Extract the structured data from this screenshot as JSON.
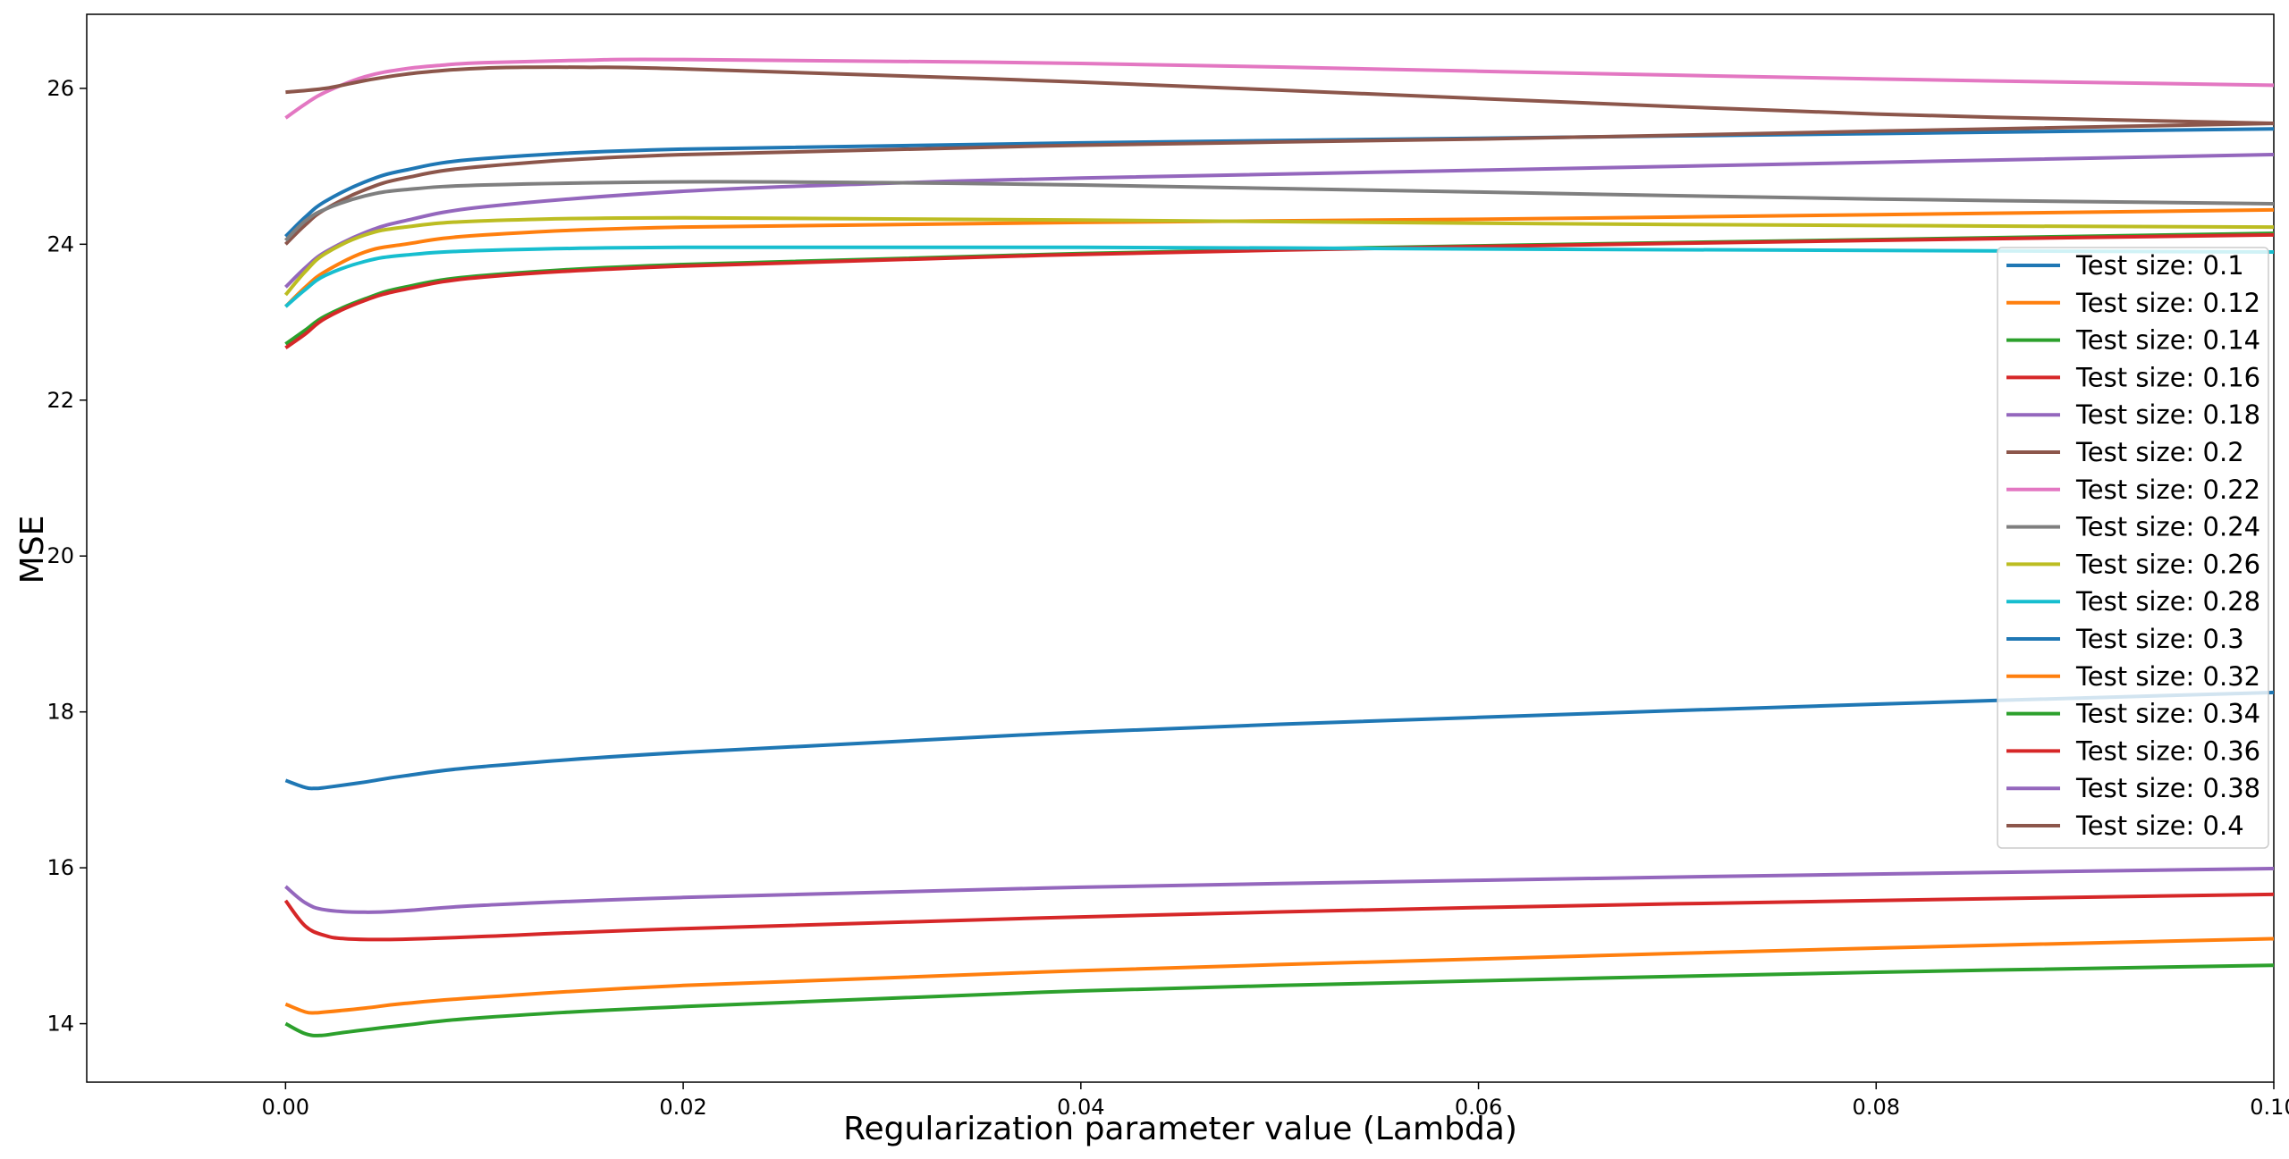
{
  "chart_data": {
    "type": "line",
    "title": "",
    "xlabel": "Regularization parameter value (Lambda)",
    "ylabel": "MSE",
    "xlim": [
      -0.01,
      0.1
    ],
    "ylim": [
      13.25,
      26.95
    ],
    "xticks": [
      0.0,
      0.02,
      0.04,
      0.06,
      0.08,
      0.1
    ],
    "xtick_labels": [
      "0.00",
      "0.02",
      "0.04",
      "0.06",
      "0.08",
      "0.10"
    ],
    "yticks": [
      14,
      16,
      18,
      20,
      22,
      24,
      26
    ],
    "ytick_labels": [
      "14",
      "16",
      "18",
      "20",
      "22",
      "24",
      "26"
    ],
    "grid": false,
    "legend_position": "right",
    "series": [
      {
        "name": "Test size: 0.1",
        "color": "#1f77b4",
        "x": [
          0.0,
          0.001,
          0.002,
          0.004,
          0.006,
          0.01,
          0.02,
          0.04,
          0.06,
          0.08,
          0.1
        ],
        "y": [
          24.1,
          24.35,
          24.55,
          24.8,
          24.95,
          25.1,
          25.22,
          25.3,
          25.36,
          25.42,
          25.48
        ]
      },
      {
        "name": "Test size: 0.12",
        "color": "#ff7f0e",
        "x": [
          0.0,
          0.001,
          0.002,
          0.004,
          0.006,
          0.01,
          0.02,
          0.04,
          0.06,
          0.08,
          0.1
        ],
        "y": [
          23.2,
          23.45,
          23.65,
          23.9,
          24.0,
          24.12,
          24.22,
          24.28,
          24.32,
          24.38,
          24.44
        ]
      },
      {
        "name": "Test size: 0.14",
        "color": "#2ca02c",
        "x": [
          0.0,
          0.001,
          0.002,
          0.004,
          0.006,
          0.01,
          0.02,
          0.04,
          0.06,
          0.08,
          0.1
        ],
        "y": [
          22.72,
          22.9,
          23.08,
          23.3,
          23.45,
          23.6,
          23.74,
          23.88,
          23.98,
          24.06,
          24.14
        ]
      },
      {
        "name": "Test size: 0.16",
        "color": "#d62728",
        "x": [
          0.0,
          0.001,
          0.002,
          0.004,
          0.006,
          0.01,
          0.02,
          0.04,
          0.06,
          0.08,
          0.1
        ],
        "y": [
          22.67,
          22.85,
          23.05,
          23.28,
          23.42,
          23.58,
          23.72,
          23.87,
          23.97,
          24.05,
          24.12
        ]
      },
      {
        "name": "Test size: 0.18",
        "color": "#9467bd",
        "x": [
          0.0,
          0.001,
          0.002,
          0.004,
          0.006,
          0.01,
          0.02,
          0.03,
          0.04,
          0.06,
          0.08,
          0.1
        ],
        "y": [
          23.45,
          23.7,
          23.9,
          24.15,
          24.3,
          24.48,
          24.68,
          24.78,
          24.85,
          24.95,
          25.05,
          25.15
        ]
      },
      {
        "name": "Test size: 0.2",
        "color": "#8c564b",
        "x": [
          0.0,
          0.001,
          0.002,
          0.004,
          0.006,
          0.01,
          0.02,
          0.04,
          0.06,
          0.08,
          0.1
        ],
        "y": [
          24.0,
          24.25,
          24.45,
          24.7,
          24.85,
          25.0,
          25.15,
          25.27,
          25.35,
          25.45,
          25.55
        ]
      },
      {
        "name": "Test size: 0.22",
        "color": "#e377c2",
        "x": [
          0.0,
          0.001,
          0.002,
          0.004,
          0.006,
          0.008,
          0.01,
          0.015,
          0.02,
          0.04,
          0.06,
          0.08,
          0.1
        ],
        "y": [
          25.62,
          25.8,
          25.95,
          26.15,
          26.25,
          26.3,
          26.33,
          26.36,
          26.37,
          26.32,
          26.22,
          26.12,
          26.04
        ]
      },
      {
        "name": "Test size: 0.24",
        "color": "#7f7f7f",
        "x": [
          0.0,
          0.001,
          0.002,
          0.004,
          0.006,
          0.01,
          0.02,
          0.03,
          0.04,
          0.06,
          0.08,
          0.1
        ],
        "y": [
          24.05,
          24.3,
          24.45,
          24.62,
          24.7,
          24.76,
          24.8,
          24.79,
          24.76,
          24.67,
          24.58,
          24.52
        ]
      },
      {
        "name": "Test size: 0.26",
        "color": "#bcbd22",
        "x": [
          0.0,
          0.001,
          0.002,
          0.004,
          0.006,
          0.01,
          0.02,
          0.04,
          0.06,
          0.08,
          0.1
        ],
        "y": [
          23.35,
          23.65,
          23.88,
          24.12,
          24.22,
          24.3,
          24.34,
          24.31,
          24.27,
          24.24,
          24.22
        ]
      },
      {
        "name": "Test size: 0.28",
        "color": "#17becf",
        "x": [
          0.0,
          0.001,
          0.002,
          0.004,
          0.006,
          0.01,
          0.02,
          0.04,
          0.06,
          0.08,
          0.1
        ],
        "y": [
          23.2,
          23.42,
          23.6,
          23.78,
          23.86,
          23.92,
          23.96,
          23.96,
          23.94,
          23.92,
          23.9
        ]
      },
      {
        "name": "Test size: 0.3",
        "color": "#1f77b4",
        "x": [
          0.0,
          0.001,
          0.0015,
          0.002,
          0.004,
          0.006,
          0.01,
          0.02,
          0.04,
          0.06,
          0.08,
          0.1
        ],
        "y": [
          17.12,
          17.03,
          17.02,
          17.03,
          17.1,
          17.18,
          17.3,
          17.48,
          17.74,
          17.93,
          18.1,
          18.25
        ]
      },
      {
        "name": "Test size: 0.32",
        "color": "#ff7f0e",
        "x": [
          0.0,
          0.001,
          0.0015,
          0.002,
          0.004,
          0.006,
          0.01,
          0.02,
          0.04,
          0.06,
          0.08,
          0.1
        ],
        "y": [
          14.25,
          14.15,
          14.14,
          14.15,
          14.2,
          14.26,
          14.34,
          14.49,
          14.68,
          14.83,
          14.97,
          15.09
        ]
      },
      {
        "name": "Test size: 0.34",
        "color": "#2ca02c",
        "x": [
          0.0,
          0.001,
          0.0018,
          0.003,
          0.006,
          0.01,
          0.02,
          0.04,
          0.06,
          0.08,
          0.1
        ],
        "y": [
          14.0,
          13.87,
          13.85,
          13.89,
          13.98,
          14.08,
          14.22,
          14.42,
          14.55,
          14.66,
          14.75
        ]
      },
      {
        "name": "Test size: 0.36",
        "color": "#d62728",
        "x": [
          0.0,
          0.001,
          0.002,
          0.003,
          0.005,
          0.008,
          0.01,
          0.02,
          0.04,
          0.06,
          0.08,
          0.1
        ],
        "y": [
          15.58,
          15.25,
          15.13,
          15.09,
          15.08,
          15.1,
          15.12,
          15.22,
          15.37,
          15.49,
          15.58,
          15.66
        ]
      },
      {
        "name": "Test size: 0.38",
        "color": "#9467bd",
        "x": [
          0.0,
          0.001,
          0.002,
          0.004,
          0.006,
          0.01,
          0.02,
          0.04,
          0.06,
          0.08,
          0.1
        ],
        "y": [
          15.76,
          15.55,
          15.46,
          15.43,
          15.45,
          15.52,
          15.62,
          15.75,
          15.84,
          15.92,
          15.99
        ]
      },
      {
        "name": "Test size: 0.4",
        "color": "#8c564b",
        "x": [
          0.0,
          0.002,
          0.004,
          0.006,
          0.008,
          0.01,
          0.012,
          0.015,
          0.02,
          0.04,
          0.06,
          0.08,
          0.1
        ],
        "y": [
          25.95,
          26.0,
          26.1,
          26.18,
          26.23,
          26.26,
          26.27,
          26.27,
          26.25,
          26.08,
          25.87,
          25.67,
          25.55
        ]
      }
    ]
  }
}
